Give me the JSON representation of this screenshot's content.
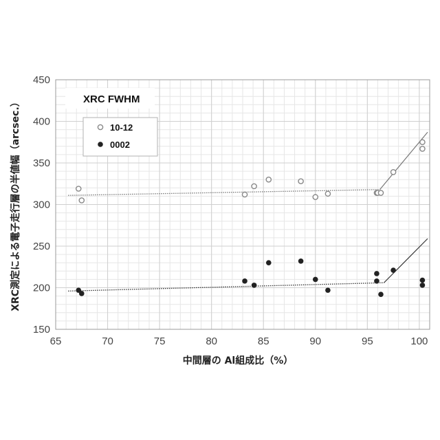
{
  "chart_data": {
    "type": "scatter",
    "title": "XRC FWHM",
    "xlabel": "中間層の Al組成比（%）",
    "ylabel": "XRC測定による電子走行層の半値幅（arcsec.）",
    "xlim": [
      65,
      101
    ],
    "ylim": [
      150,
      450
    ],
    "xticks": [
      65,
      70,
      75,
      80,
      85,
      90,
      95,
      100
    ],
    "yticks": [
      150,
      200,
      250,
      300,
      350,
      400,
      450
    ],
    "grid": true,
    "legend_position": "top-left",
    "series": [
      {
        "name": "10-12",
        "marker": "open-circle",
        "color": "#888888",
        "x": [
          67.2,
          67.5,
          83.2,
          84.1,
          85.5,
          88.6,
          90.0,
          91.2,
          95.9,
          96.0,
          96.3,
          97.5,
          100.3,
          100.3
        ],
        "y": [
          319,
          305,
          312,
          322,
          330,
          328,
          309,
          313,
          314,
          314,
          314,
          339,
          375,
          367
        ]
      },
      {
        "name": "0002",
        "marker": "filled-circle",
        "color": "#222222",
        "x": [
          67.2,
          67.5,
          83.2,
          84.1,
          85.5,
          88.6,
          90.0,
          91.2,
          95.9,
          95.9,
          96.3,
          97.5,
          100.3,
          100.3
        ],
        "y": [
          197,
          193,
          208,
          203,
          230,
          232,
          210,
          197,
          217,
          208,
          192,
          221,
          209,
          203
        ]
      }
    ],
    "trend_lines": [
      {
        "series": "10-12",
        "style": "dotted",
        "x": [
          66.2,
          96.2
        ],
        "y": [
          311,
          318
        ]
      },
      {
        "series": "10-12",
        "style": "solid",
        "x": [
          96.2,
          100.8
        ],
        "y": [
          318,
          387
        ]
      },
      {
        "series": "0002",
        "style": "dotted",
        "x": [
          66.2,
          96.6
        ],
        "y": [
          196,
          206
        ]
      },
      {
        "series": "0002",
        "style": "solid",
        "x": [
          96.6,
          100.8
        ],
        "y": [
          206,
          259
        ]
      }
    ]
  }
}
